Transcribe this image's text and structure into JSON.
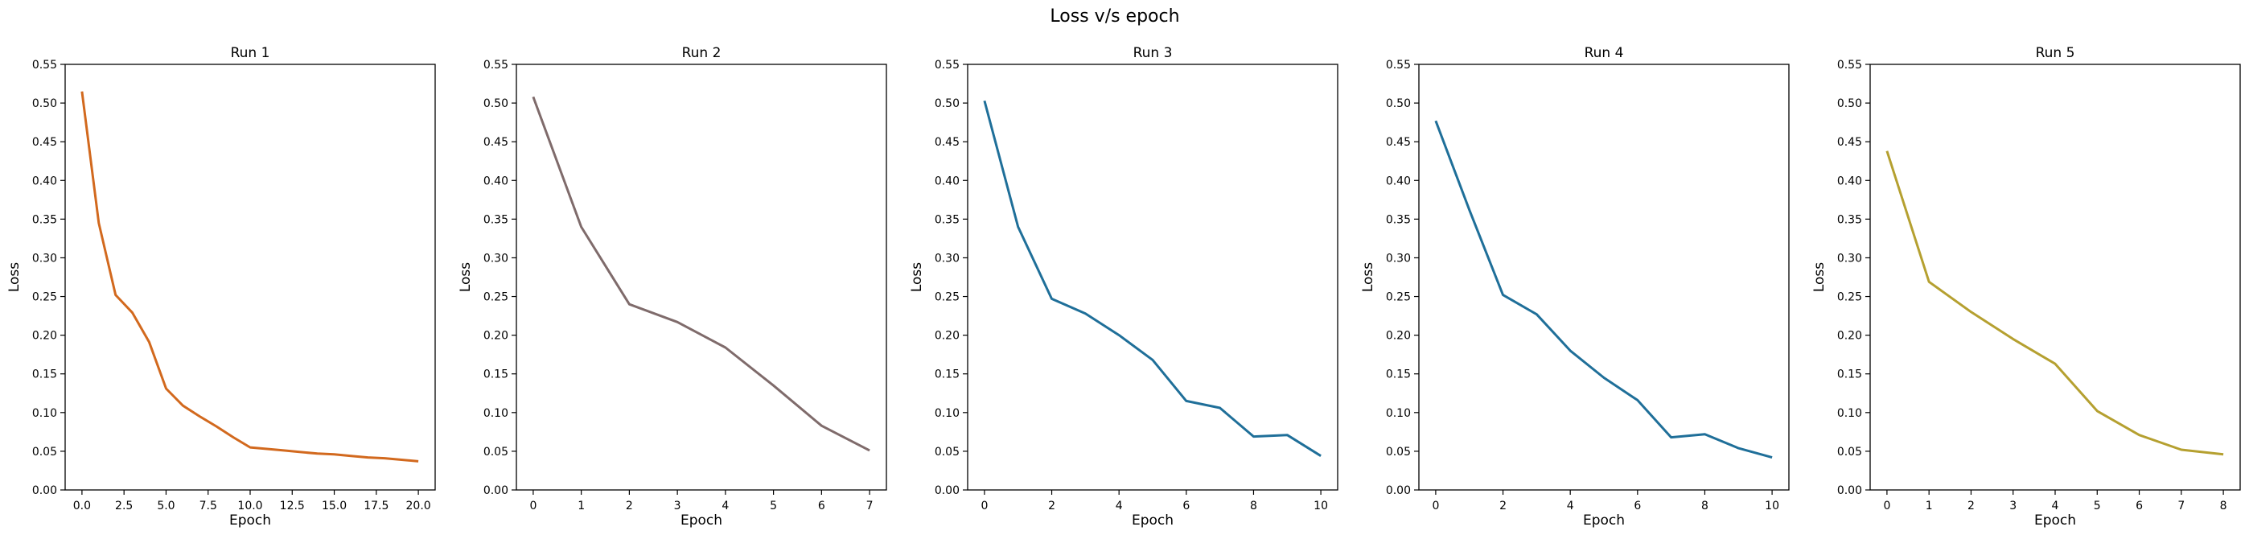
{
  "figure": {
    "title": "Loss v/s epoch"
  },
  "chart_data": [
    {
      "type": "line",
      "title": "Run 1",
      "xlabel": "Epoch",
      "ylabel": "Loss",
      "xlim": [
        -1,
        21
      ],
      "ylim": [
        0,
        0.55
      ],
      "xticks": [
        0,
        2.5,
        5,
        7.5,
        10,
        12.5,
        15,
        17.5,
        20
      ],
      "xtick_labels": [
        "0.0",
        "2.5",
        "5.0",
        "7.5",
        "10.0",
        "12.5",
        "15.0",
        "17.5",
        "20.0"
      ],
      "yticks": [
        0,
        0.05,
        0.1,
        0.15,
        0.2,
        0.25,
        0.3,
        0.35,
        0.4,
        0.45,
        0.5,
        0.55
      ],
      "ytick_labels": [
        "0.00",
        "0.05",
        "0.10",
        "0.15",
        "0.20",
        "0.25",
        "0.30",
        "0.35",
        "0.40",
        "0.45",
        "0.50",
        "0.55"
      ],
      "series": [
        {
          "color": "#d2691e",
          "x": [
            0,
            1,
            2,
            3,
            4,
            5,
            6,
            7,
            8,
            9,
            10,
            11,
            12,
            13,
            14,
            15,
            16,
            17,
            18,
            19,
            20
          ],
          "y": [
            0.515,
            0.345,
            0.252,
            0.229,
            0.191,
            0.131,
            0.109,
            0.095,
            0.082,
            0.068,
            0.055,
            0.053,
            0.051,
            0.049,
            0.047,
            0.046,
            0.044,
            0.042,
            0.041,
            0.039,
            0.037
          ]
        }
      ]
    },
    {
      "type": "line",
      "title": "Run 2",
      "xlabel": "Epoch",
      "ylabel": "Loss",
      "xlim": [
        -0.35,
        7.35
      ],
      "ylim": [
        0,
        0.55
      ],
      "xticks": [
        0,
        1,
        2,
        3,
        4,
        5,
        6,
        7
      ],
      "xtick_labels": [
        "0",
        "1",
        "2",
        "3",
        "4",
        "5",
        "6",
        "7"
      ],
      "yticks": [
        0,
        0.05,
        0.1,
        0.15,
        0.2,
        0.25,
        0.3,
        0.35,
        0.4,
        0.45,
        0.5,
        0.55
      ],
      "ytick_labels": [
        "0.00",
        "0.05",
        "0.10",
        "0.15",
        "0.20",
        "0.25",
        "0.30",
        "0.35",
        "0.40",
        "0.45",
        "0.50",
        "0.55"
      ],
      "series": [
        {
          "color": "#7f6b6b",
          "x": [
            0,
            1,
            2,
            3,
            4,
            5,
            6,
            7
          ],
          "y": [
            0.508,
            0.34,
            0.24,
            0.217,
            0.184,
            0.135,
            0.083,
            0.051
          ]
        }
      ]
    },
    {
      "type": "line",
      "title": "Run 3",
      "xlabel": "Epoch",
      "ylabel": "Loss",
      "xlim": [
        -0.5,
        10.5
      ],
      "ylim": [
        0,
        0.55
      ],
      "xticks": [
        0,
        2,
        4,
        6,
        8,
        10
      ],
      "xtick_labels": [
        "0",
        "2",
        "4",
        "6",
        "8",
        "10"
      ],
      "yticks": [
        0,
        0.05,
        0.1,
        0.15,
        0.2,
        0.25,
        0.3,
        0.35,
        0.4,
        0.45,
        0.5,
        0.55
      ],
      "ytick_labels": [
        "0.00",
        "0.05",
        "0.10",
        "0.15",
        "0.20",
        "0.25",
        "0.30",
        "0.35",
        "0.40",
        "0.45",
        "0.50",
        "0.55"
      ],
      "series": [
        {
          "color": "#1f6f99",
          "x": [
            0,
            1,
            2,
            3,
            4,
            5,
            6,
            7,
            8,
            9,
            10
          ],
          "y": [
            0.503,
            0.34,
            0.247,
            0.228,
            0.2,
            0.168,
            0.115,
            0.106,
            0.069,
            0.071,
            0.044
          ]
        }
      ]
    },
    {
      "type": "line",
      "title": "Run 4",
      "xlabel": "Epoch",
      "ylabel": "Loss",
      "xlim": [
        -0.5,
        10.5
      ],
      "ylim": [
        0,
        0.55
      ],
      "xticks": [
        0,
        2,
        4,
        6,
        8,
        10
      ],
      "xtick_labels": [
        "0",
        "2",
        "4",
        "6",
        "8",
        "10"
      ],
      "yticks": [
        0,
        0.05,
        0.1,
        0.15,
        0.2,
        0.25,
        0.3,
        0.35,
        0.4,
        0.45,
        0.5,
        0.55
      ],
      "ytick_labels": [
        "0.00",
        "0.05",
        "0.10",
        "0.15",
        "0.20",
        "0.25",
        "0.30",
        "0.35",
        "0.40",
        "0.45",
        "0.50",
        "0.55"
      ],
      "series": [
        {
          "color": "#1f6f99",
          "x": [
            0,
            1,
            2,
            3,
            4,
            5,
            6,
            7,
            8,
            9,
            10
          ],
          "y": [
            0.477,
            0.362,
            0.252,
            0.227,
            0.18,
            0.145,
            0.116,
            0.068,
            0.072,
            0.054,
            0.042
          ]
        }
      ]
    },
    {
      "type": "line",
      "title": "Run 5",
      "xlabel": "Epoch",
      "ylabel": "Loss",
      "xlim": [
        -0.4,
        8.4
      ],
      "ylim": [
        0,
        0.55
      ],
      "xticks": [
        0,
        1,
        2,
        3,
        4,
        5,
        6,
        7,
        8
      ],
      "xtick_labels": [
        "0",
        "1",
        "2",
        "3",
        "4",
        "5",
        "6",
        "7",
        "8"
      ],
      "yticks": [
        0,
        0.05,
        0.1,
        0.15,
        0.2,
        0.25,
        0.3,
        0.35,
        0.4,
        0.45,
        0.5,
        0.55
      ],
      "ytick_labels": [
        "0.00",
        "0.05",
        "0.10",
        "0.15",
        "0.20",
        "0.25",
        "0.30",
        "0.35",
        "0.40",
        "0.45",
        "0.50",
        "0.55"
      ],
      "series": [
        {
          "color": "#b5a030",
          "x": [
            0,
            1,
            2,
            3,
            4,
            5,
            6,
            7,
            8
          ],
          "y": [
            0.438,
            0.269,
            0.23,
            0.195,
            0.163,
            0.102,
            0.071,
            0.052,
            0.046
          ]
        }
      ]
    }
  ]
}
